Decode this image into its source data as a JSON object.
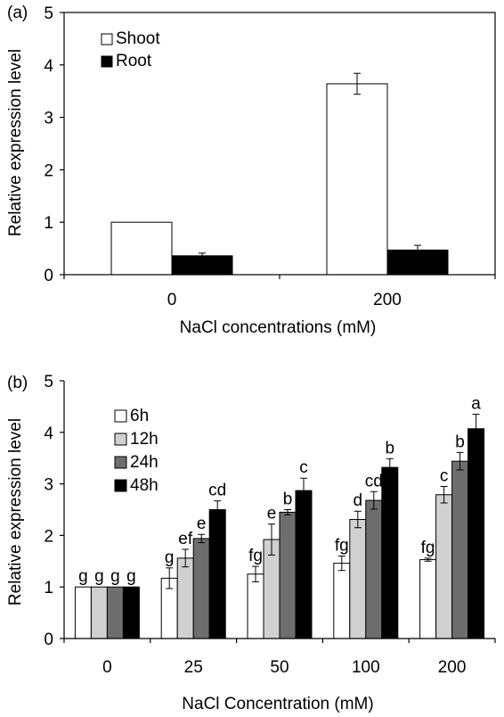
{
  "chart_data": [
    {
      "type": "bar",
      "panel_label": "(a)",
      "categories": [
        "0",
        "200"
      ],
      "series": [
        {
          "name": "Shoot",
          "values": [
            1.0,
            3.64
          ],
          "errors": [
            0.0,
            0.2
          ],
          "color": "#ffffff"
        },
        {
          "name": "Root",
          "values": [
            0.36,
            0.47
          ],
          "errors": [
            0.05,
            0.09
          ],
          "color": "#000000"
        }
      ],
      "xlabel": "NaCl concentrations (mM)",
      "ylabel": "Relative expression level",
      "ylim": [
        0,
        5
      ],
      "yticks": [
        "0",
        "1",
        "2",
        "3",
        "4",
        "5"
      ],
      "grid": false,
      "legend_position": "top-left"
    },
    {
      "type": "bar",
      "panel_label": "(b)",
      "categories": [
        "0",
        "25",
        "50",
        "100",
        "200"
      ],
      "series": [
        {
          "name": "6h",
          "values": [
            1.0,
            1.17,
            1.25,
            1.46,
            1.53
          ],
          "errors": [
            0.0,
            0.2,
            0.15,
            0.14,
            0.03
          ],
          "labels": [
            "g",
            "g",
            "fg",
            "fg",
            "fg"
          ],
          "color": "#ffffff"
        },
        {
          "name": "12h",
          "values": [
            1.0,
            1.56,
            1.92,
            2.31,
            2.79
          ],
          "errors": [
            0.0,
            0.17,
            0.3,
            0.16,
            0.16
          ],
          "labels": [
            "g",
            "ef",
            "e",
            "d",
            "c"
          ],
          "color": "#d0d0d0"
        },
        {
          "name": "24h",
          "values": [
            1.0,
            1.94,
            2.45,
            2.68,
            3.44
          ],
          "errors": [
            0.0,
            0.08,
            0.05,
            0.17,
            0.17
          ],
          "labels": [
            "g",
            "e",
            "b",
            "cd",
            "b"
          ],
          "color": "#6e6e6e"
        },
        {
          "name": "48h",
          "values": [
            1.0,
            2.5,
            2.87,
            3.32,
            4.07
          ],
          "errors": [
            0.0,
            0.17,
            0.24,
            0.17,
            0.28
          ],
          "labels": [
            "g",
            "cd",
            "c",
            "b",
            "a"
          ],
          "color": "#000000"
        }
      ],
      "xlabel": "NaCl Concentration (mM)",
      "ylabel": "Relative expression level",
      "ylim": [
        0,
        5
      ],
      "yticks": [
        "0",
        "1",
        "2",
        "3",
        "4",
        "5"
      ],
      "grid": false,
      "legend_position": "top-left"
    }
  ]
}
